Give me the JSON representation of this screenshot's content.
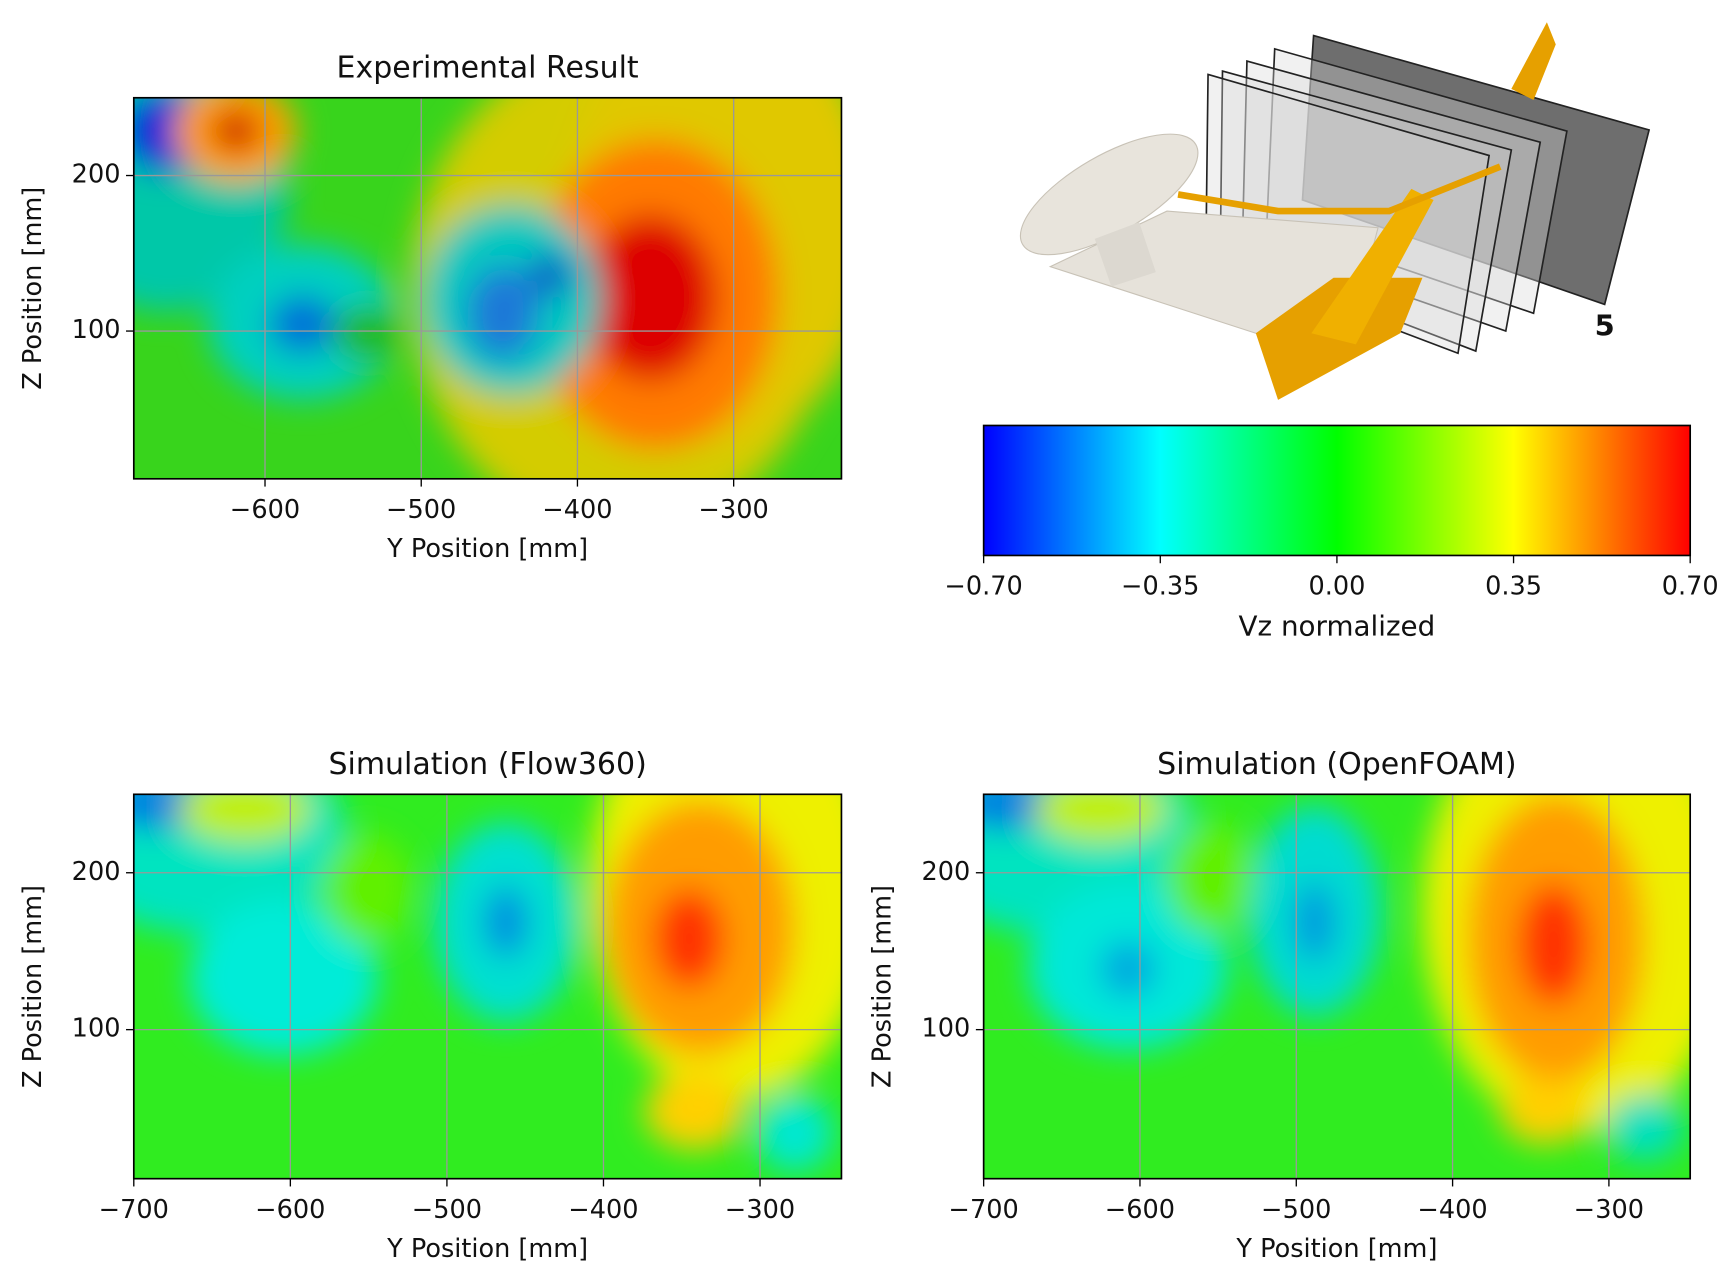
{
  "chart_data": [
    {
      "type": "contour",
      "title": "Experimental Result",
      "xlabel": "Y Position [mm]",
      "ylabel": "Z Position [mm]",
      "xlim": [
        -684,
        -231
      ],
      "ylim": [
        5,
        250
      ],
      "xticks": [
        {
          "value": -600,
          "label": "−600"
        },
        {
          "value": -500,
          "label": "−500"
        },
        {
          "value": -400,
          "label": "−400"
        },
        {
          "value": -300,
          "label": "−300"
        }
      ],
      "yticks": [
        100,
        200
      ],
      "grid": true
    },
    {
      "type": "colorbar",
      "xlabel": "Vz normalized",
      "xlim": [
        -0.7,
        0.7
      ],
      "xticks": [
        {
          "value": -0.7,
          "label": "−0.70"
        },
        {
          "value": -0.35,
          "label": "−0.35"
        },
        {
          "value": 0,
          "label": "0.00"
        },
        {
          "value": 0.35,
          "label": "0.35"
        },
        {
          "value": 0.7,
          "label": "0.70"
        }
      ],
      "colormap": [
        "#0000ff",
        "#00ffff",
        "#00ff00",
        "#ffff00",
        "#ff0000"
      ]
    },
    {
      "type": "contour",
      "title": "Simulation (Flow360)",
      "xlabel": "Y Position [mm]",
      "ylabel": "Z Position [mm]",
      "xlim": [
        -700,
        -248
      ],
      "ylim": [
        5,
        250
      ],
      "xticks": [
        {
          "value": -700,
          "label": "−700"
        },
        {
          "value": -600,
          "label": "−600"
        },
        {
          "value": -500,
          "label": "−500"
        },
        {
          "value": -400,
          "label": "−400"
        },
        {
          "value": -300,
          "label": "−300"
        }
      ],
      "yticks": [
        100,
        200
      ],
      "grid": true
    },
    {
      "type": "contour",
      "title": "Simulation (OpenFOAM)",
      "xlabel": "Y Position [mm]",
      "ylabel": "Z Position [mm]",
      "xlim": [
        -700,
        -248
      ],
      "ylim": [
        5,
        250
      ],
      "xticks": [
        {
          "value": -700,
          "label": "−700"
        },
        {
          "value": -600,
          "label": "−600"
        },
        {
          "value": -500,
          "label": "−500"
        },
        {
          "value": -400,
          "label": "−400"
        },
        {
          "value": -300,
          "label": "−300"
        }
      ],
      "yticks": [
        100,
        200
      ],
      "grid": true
    }
  ],
  "render": {
    "label": "5"
  }
}
